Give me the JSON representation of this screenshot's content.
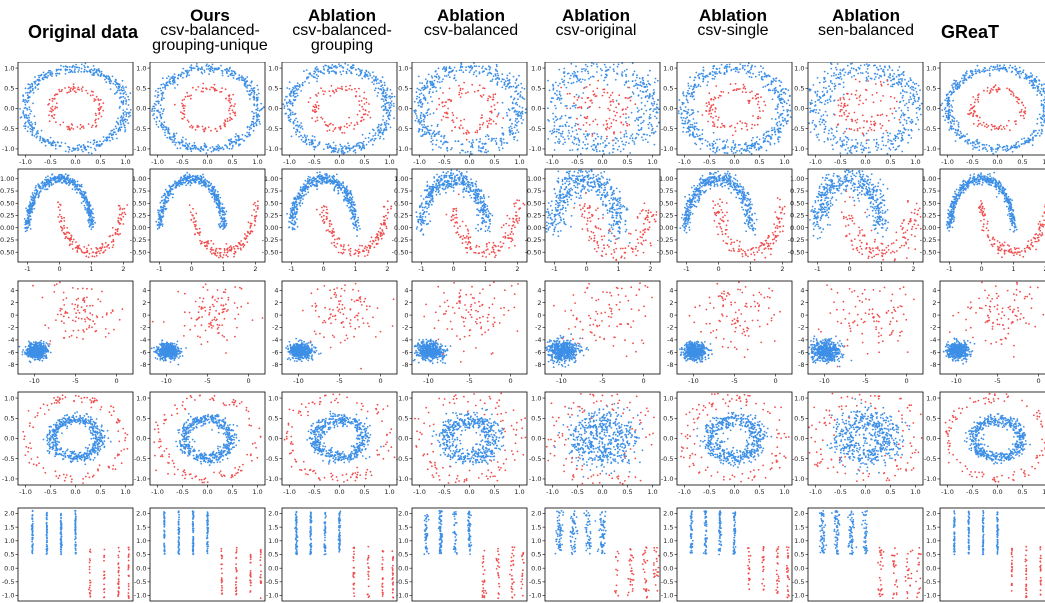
{
  "colors": {
    "class_a": "#3d8fe6",
    "class_b": "#f04e4e"
  },
  "columns": [
    {
      "title_bold": "Original data",
      "subtitle": []
    },
    {
      "title_bold": "Ours",
      "subtitle": [
        "csv-balanced-",
        "grouping-unique"
      ]
    },
    {
      "title_bold": "Ablation",
      "subtitle": [
        "csv-balanced-",
        "grouping"
      ]
    },
    {
      "title_bold": "Ablation",
      "subtitle": [
        "csv-balanced"
      ]
    },
    {
      "title_bold": "Ablation",
      "subtitle": [
        "csv-original"
      ]
    },
    {
      "title_bold": "Ablation",
      "subtitle": [
        "csv-single"
      ]
    },
    {
      "title_bold": "Ablation",
      "subtitle": [
        "sen-balanced"
      ]
    },
    {
      "title_bold": "GReaT",
      "subtitle": []
    }
  ],
  "chart_data": [
    {
      "type": "scatter",
      "dataset": "circles-outer-blue",
      "xlim": [
        -1.15,
        1.15
      ],
      "ylim": [
        -1.15,
        1.15
      ],
      "xticks": [
        "-1.0",
        "-0.5",
        "0.0",
        "0.5",
        "1.0"
      ],
      "xtick_values": [
        -1,
        -0.5,
        0,
        0.5,
        1
      ],
      "yticks": [
        "-1.0",
        "-0.5",
        "0.0",
        "0.5",
        "1.0"
      ],
      "ytick_values": [
        -1,
        -0.5,
        0,
        0.5,
        1
      ],
      "series": [
        {
          "color": "class_a",
          "shape": "ring",
          "cx": 0,
          "cy": 0,
          "r": 1.0,
          "noise": 0.06,
          "n": 520
        },
        {
          "color": "class_b",
          "shape": "ring",
          "cx": 0,
          "cy": 0,
          "r": 0.5,
          "noise": 0.05,
          "n": 110
        }
      ]
    },
    {
      "type": "scatter",
      "dataset": "moons",
      "xlim": [
        -1.3,
        2.3
      ],
      "ylim": [
        -0.7,
        1.2
      ],
      "xticks": [
        "-1",
        "0",
        "1",
        "2"
      ],
      "xtick_values": [
        -1,
        0,
        1,
        2
      ],
      "yticks": [
        "-0.50",
        "-0.25",
        "0.00",
        "0.25",
        "0.50",
        "0.75",
        "1.00"
      ],
      "ytick_values": [
        -0.5,
        -0.25,
        0,
        0.25,
        0.5,
        0.75,
        1.0
      ],
      "series": [
        {
          "color": "class_a",
          "shape": "arc",
          "cx": 0,
          "cy": 0,
          "r": 1.0,
          "a0": 0,
          "a1": 3.1416,
          "noise": 0.05,
          "n": 480
        },
        {
          "color": "class_b",
          "shape": "arc",
          "cx": 1,
          "cy": 0.5,
          "r": 1.0,
          "a0": 3.1416,
          "a1": 6.2832,
          "noise": 0.06,
          "n": 150
        }
      ]
    },
    {
      "type": "scatter",
      "dataset": "blobs",
      "xlim": [
        -12,
        2
      ],
      "ylim": [
        -9.5,
        5.5
      ],
      "xticks": [
        "-10",
        "-5",
        "0"
      ],
      "xtick_values": [
        -10,
        -5,
        0
      ],
      "yticks": [
        "-8",
        "-6",
        "-4",
        "-2",
        "0",
        "2",
        "4"
      ],
      "ytick_values": [
        -8,
        -6,
        -4,
        -2,
        0,
        2,
        4
      ],
      "series": [
        {
          "color": "class_a",
          "shape": "blob",
          "cx": -9.8,
          "cy": -5.8,
          "sx": 0.65,
          "sy": 0.6,
          "n": 520
        },
        {
          "color": "class_b",
          "shape": "blob",
          "cx": -4.5,
          "cy": 0.5,
          "sx": 2.2,
          "sy": 2.6,
          "n": 110
        }
      ]
    },
    {
      "type": "scatter",
      "dataset": "circles-outer-red",
      "xlim": [
        -1.15,
        1.15
      ],
      "ylim": [
        -1.15,
        1.15
      ],
      "xticks": [
        "-1.0",
        "-0.5",
        "0.0",
        "0.5",
        "1.0"
      ],
      "xtick_values": [
        -1,
        -0.5,
        0,
        0.5,
        1
      ],
      "yticks": [
        "-1.0",
        "-0.5",
        "0.0",
        "0.5",
        "1.0"
      ],
      "ytick_values": [
        -1,
        -0.5,
        0,
        0.5,
        1
      ],
      "series": [
        {
          "color": "class_a",
          "shape": "ring",
          "cx": 0,
          "cy": 0,
          "r": 0.48,
          "noise": 0.07,
          "n": 520
        },
        {
          "color": "class_b",
          "shape": "ring",
          "cx": 0,
          "cy": 0,
          "r": 1.0,
          "noise": 0.07,
          "n": 120
        }
      ]
    },
    {
      "type": "scatter",
      "dataset": "vertical-strips",
      "xlim": [
        -0.5,
        7.5
      ],
      "ylim": [
        -1.2,
        2.2
      ],
      "xticks": [],
      "xtick_values": [],
      "yticks": [
        "-1.0",
        "-0.5",
        "0.0",
        "0.5",
        "1.0",
        "1.5",
        "2.0"
      ],
      "ytick_values": [
        -1,
        -0.5,
        0,
        0.5,
        1,
        1.5,
        2
      ],
      "series": [
        {
          "color": "class_a",
          "shape": "strips",
          "xs": [
            0.5,
            1.5,
            2.5,
            3.5
          ],
          "ylo": 0.5,
          "yhi": 2.1,
          "n": 220
        },
        {
          "color": "class_b",
          "shape": "strips",
          "xs": [
            4.5,
            5.5,
            6.5,
            7.2
          ],
          "ylo": -1.1,
          "yhi": 0.8,
          "n": 90
        }
      ]
    }
  ]
}
